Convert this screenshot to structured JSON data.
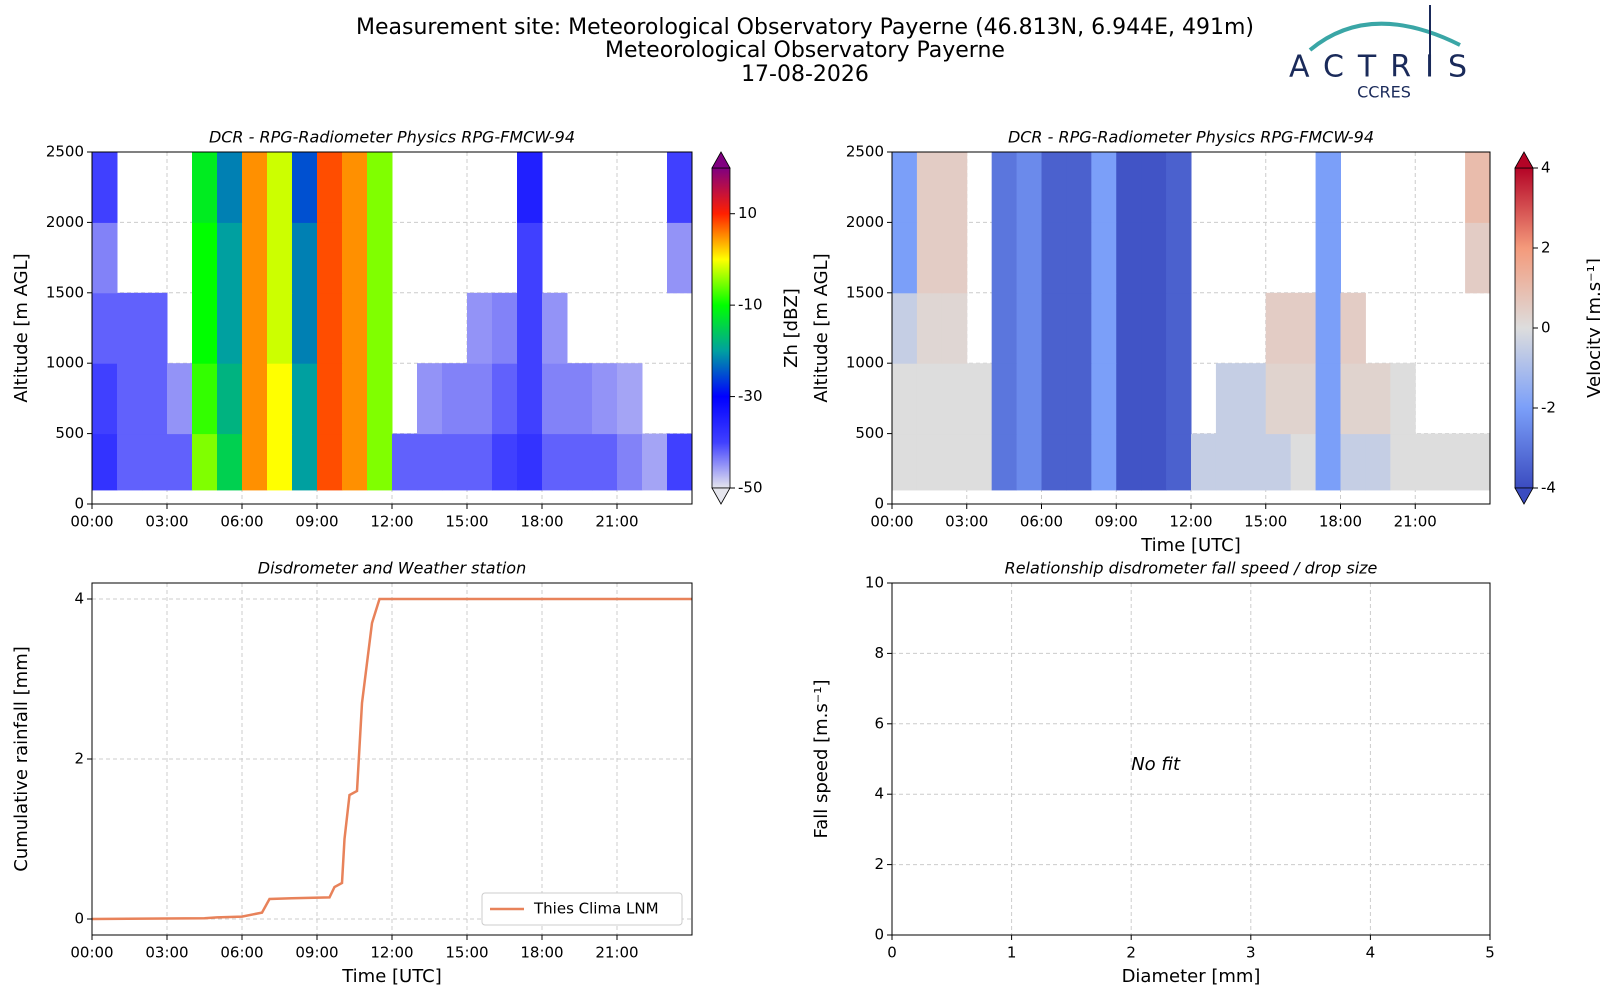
{
  "header": {
    "title": [
      "Measurement site: Meteorological Observatory Payerne (46.813N, 6.944E, 491m)",
      "Meteorological Observatory Payerne",
      "17-08-2026"
    ],
    "logo": "ACTRIS",
    "logo_sub": "CCRES"
  },
  "chart_data": [
    {
      "type": "heatmap",
      "title": "DCR - RPG-Radiometer Physics RPG-FMCW-94",
      "ylabel": "Altitude [m AGL]",
      "colorbar_label": "Zh [dBZ]",
      "x": [
        0,
        1,
        2,
        3,
        4,
        5,
        6,
        7,
        8,
        9,
        10,
        11,
        12,
        13,
        14,
        15,
        16,
        17,
        18,
        19,
        20,
        21,
        22,
        23,
        24
      ],
      "y": [
        100,
        500,
        1000,
        1500,
        2000,
        2500
      ],
      "values": [
        [
          -38,
          -42,
          -42,
          -42,
          -5,
          -15,
          5,
          0,
          -20,
          8,
          5,
          -5,
          -42,
          -42,
          -42,
          -42,
          -40,
          -38,
          -42,
          -42,
          -42,
          -44,
          -46,
          -40
        ],
        [
          -40,
          -42,
          -42,
          -45,
          -8,
          -18,
          5,
          0,
          -20,
          8,
          5,
          -5,
          null,
          -45,
          -44,
          -44,
          -42,
          -40,
          -44,
          -44,
          -45,
          -46,
          null,
          null
        ],
        [
          -42,
          -42,
          -42,
          null,
          -10,
          -20,
          5,
          -2,
          -22,
          8,
          5,
          -5,
          null,
          null,
          null,
          -45,
          -44,
          -40,
          -45,
          null,
          null,
          null,
          null,
          null
        ],
        [
          -44,
          null,
          null,
          null,
          -10,
          -20,
          5,
          -2,
          -22,
          8,
          5,
          -5,
          null,
          null,
          null,
          null,
          null,
          -40,
          null,
          null,
          null,
          null,
          null,
          -45
        ],
        [
          -40,
          null,
          null,
          null,
          -12,
          -22,
          5,
          -2,
          -25,
          8,
          5,
          -5,
          null,
          null,
          null,
          null,
          null,
          -35,
          null,
          null,
          null,
          null,
          null,
          -40
        ]
      ],
      "clim": [
        -50,
        20
      ],
      "cticks": [
        -50,
        -30,
        -10,
        10
      ],
      "colors": [
        "#e6e6ee",
        "#4040ff",
        "#0000ff",
        "#00a0a0",
        "#00ff00",
        "#ffff00",
        "#ff2000",
        "#800080"
      ],
      "xlim": [
        0,
        24
      ],
      "ylim": [
        0,
        2500
      ],
      "yticks": [
        0,
        500,
        1000,
        1500,
        2000,
        2500
      ],
      "xticks": [
        {
          "value": 0,
          "label": "00:00"
        },
        {
          "value": 3,
          "label": "03:00"
        },
        {
          "value": 6,
          "label": "06:00"
        },
        {
          "value": 9,
          "label": "09:00"
        },
        {
          "value": 12,
          "label": "12:00"
        },
        {
          "value": 15,
          "label": "15:00"
        },
        {
          "value": 18,
          "label": "18:00"
        },
        {
          "value": 21,
          "label": "21:00"
        }
      ],
      "grid": true
    },
    {
      "type": "heatmap",
      "title": "DCR - RPG-Radiometer Physics RPG-FMCW-94",
      "xlabel": "Time [UTC]",
      "ylabel": "Altitude [m AGL]",
      "colorbar_label": "Velocity [m.s⁻¹]",
      "x": [
        0,
        1,
        2,
        3,
        4,
        5,
        6,
        7,
        8,
        9,
        10,
        11,
        12,
        13,
        14,
        15,
        16,
        17,
        18,
        19,
        20,
        21,
        22,
        23,
        24
      ],
      "y": [
        100,
        500,
        1000,
        1500,
        2000,
        2500
      ],
      "values": [
        [
          0,
          0,
          0,
          0,
          -3,
          -2.5,
          -3.5,
          -3.5,
          -2,
          -3.8,
          -3.8,
          -3.5,
          -0.5,
          -0.5,
          -0.5,
          -0.5,
          0,
          -2,
          -0.5,
          -0.5,
          0,
          0,
          0,
          0
        ],
        [
          0,
          0,
          0,
          0,
          -3,
          -2.5,
          -3.5,
          -3.5,
          -2,
          -3.8,
          -3.8,
          -3.5,
          null,
          -0.5,
          -0.5,
          0.3,
          0.3,
          -2,
          0.3,
          0.3,
          0,
          null,
          null,
          null
        ],
        [
          -0.5,
          0.2,
          0.2,
          null,
          -3,
          -2.5,
          -3.5,
          -3.5,
          -2,
          -3.8,
          -3.8,
          -3.5,
          null,
          null,
          null,
          0.5,
          0.5,
          -2,
          0.5,
          null,
          null,
          null,
          null,
          null
        ],
        [
          -2,
          0.5,
          0.5,
          null,
          -3,
          -2.5,
          -3.5,
          -3.5,
          -2,
          -3.8,
          -3.8,
          -3.5,
          null,
          null,
          null,
          null,
          null,
          -2,
          null,
          null,
          null,
          null,
          null,
          0.5
        ],
        [
          -2,
          0.5,
          0.5,
          null,
          -3,
          -2.5,
          -3.5,
          -3.5,
          -2,
          -3.8,
          -3.8,
          -3.5,
          null,
          null,
          null,
          null,
          null,
          -2,
          null,
          null,
          null,
          null,
          null,
          1
        ]
      ],
      "clim": [
        -4,
        4
      ],
      "cticks": [
        -4,
        -2,
        0,
        2,
        4
      ],
      "colors": [
        "#3b4cc0",
        "#7b9ff9",
        "#dddddd",
        "#f49a7b",
        "#b40426"
      ],
      "xlim": [
        0,
        24
      ],
      "ylim": [
        0,
        2500
      ],
      "yticks": [
        0,
        500,
        1000,
        1500,
        2000,
        2500
      ],
      "xticks": [
        {
          "value": 0,
          "label": "00:00"
        },
        {
          "value": 3,
          "label": "03:00"
        },
        {
          "value": 6,
          "label": "06:00"
        },
        {
          "value": 9,
          "label": "09:00"
        },
        {
          "value": 12,
          "label": "12:00"
        },
        {
          "value": 15,
          "label": "15:00"
        },
        {
          "value": 18,
          "label": "18:00"
        },
        {
          "value": 21,
          "label": "21:00"
        }
      ],
      "grid": true
    },
    {
      "type": "line",
      "title": "Disdrometer and Weather station",
      "xlabel": "Time [UTC]",
      "ylabel": "Cumulative rainfall [mm]",
      "x": [
        0,
        4.5,
        5,
        6,
        6.8,
        7.1,
        8,
        9.5,
        9.7,
        10,
        10.1,
        10.3,
        10.6,
        10.8,
        11,
        11.2,
        11.5,
        24
      ],
      "series": [
        {
          "name": "Thies Clima LNM",
          "color": "#e8825a",
          "values": [
            0,
            0.01,
            0.02,
            0.03,
            0.08,
            0.25,
            0.26,
            0.27,
            0.4,
            0.45,
            1.0,
            1.55,
            1.6,
            2.7,
            3.2,
            3.7,
            4.0,
            4.0
          ]
        }
      ],
      "xlim": [
        0,
        24
      ],
      "ylim": [
        -0.2,
        4.2
      ],
      "yticks": [
        0,
        2,
        4
      ],
      "xticks": [
        {
          "value": 0,
          "label": "00:00"
        },
        {
          "value": 3,
          "label": "03:00"
        },
        {
          "value": 6,
          "label": "06:00"
        },
        {
          "value": 9,
          "label": "09:00"
        },
        {
          "value": 12,
          "label": "12:00"
        },
        {
          "value": 15,
          "label": "15:00"
        },
        {
          "value": 18,
          "label": "18:00"
        },
        {
          "value": 21,
          "label": "21:00"
        }
      ],
      "grid": true,
      "legend": "lower right"
    },
    {
      "type": "scatter",
      "title": "Relationship disdrometer fall speed / drop size",
      "xlabel": "Diameter [mm]",
      "ylabel": "Fall speed [m.s⁻¹]",
      "annotation": "No fit",
      "xlim": [
        0,
        5
      ],
      "ylim": [
        0,
        10
      ],
      "xticks": [
        0,
        1,
        2,
        3,
        4,
        5
      ],
      "yticks": [
        0,
        2,
        4,
        6,
        8,
        10
      ],
      "grid": true
    }
  ]
}
